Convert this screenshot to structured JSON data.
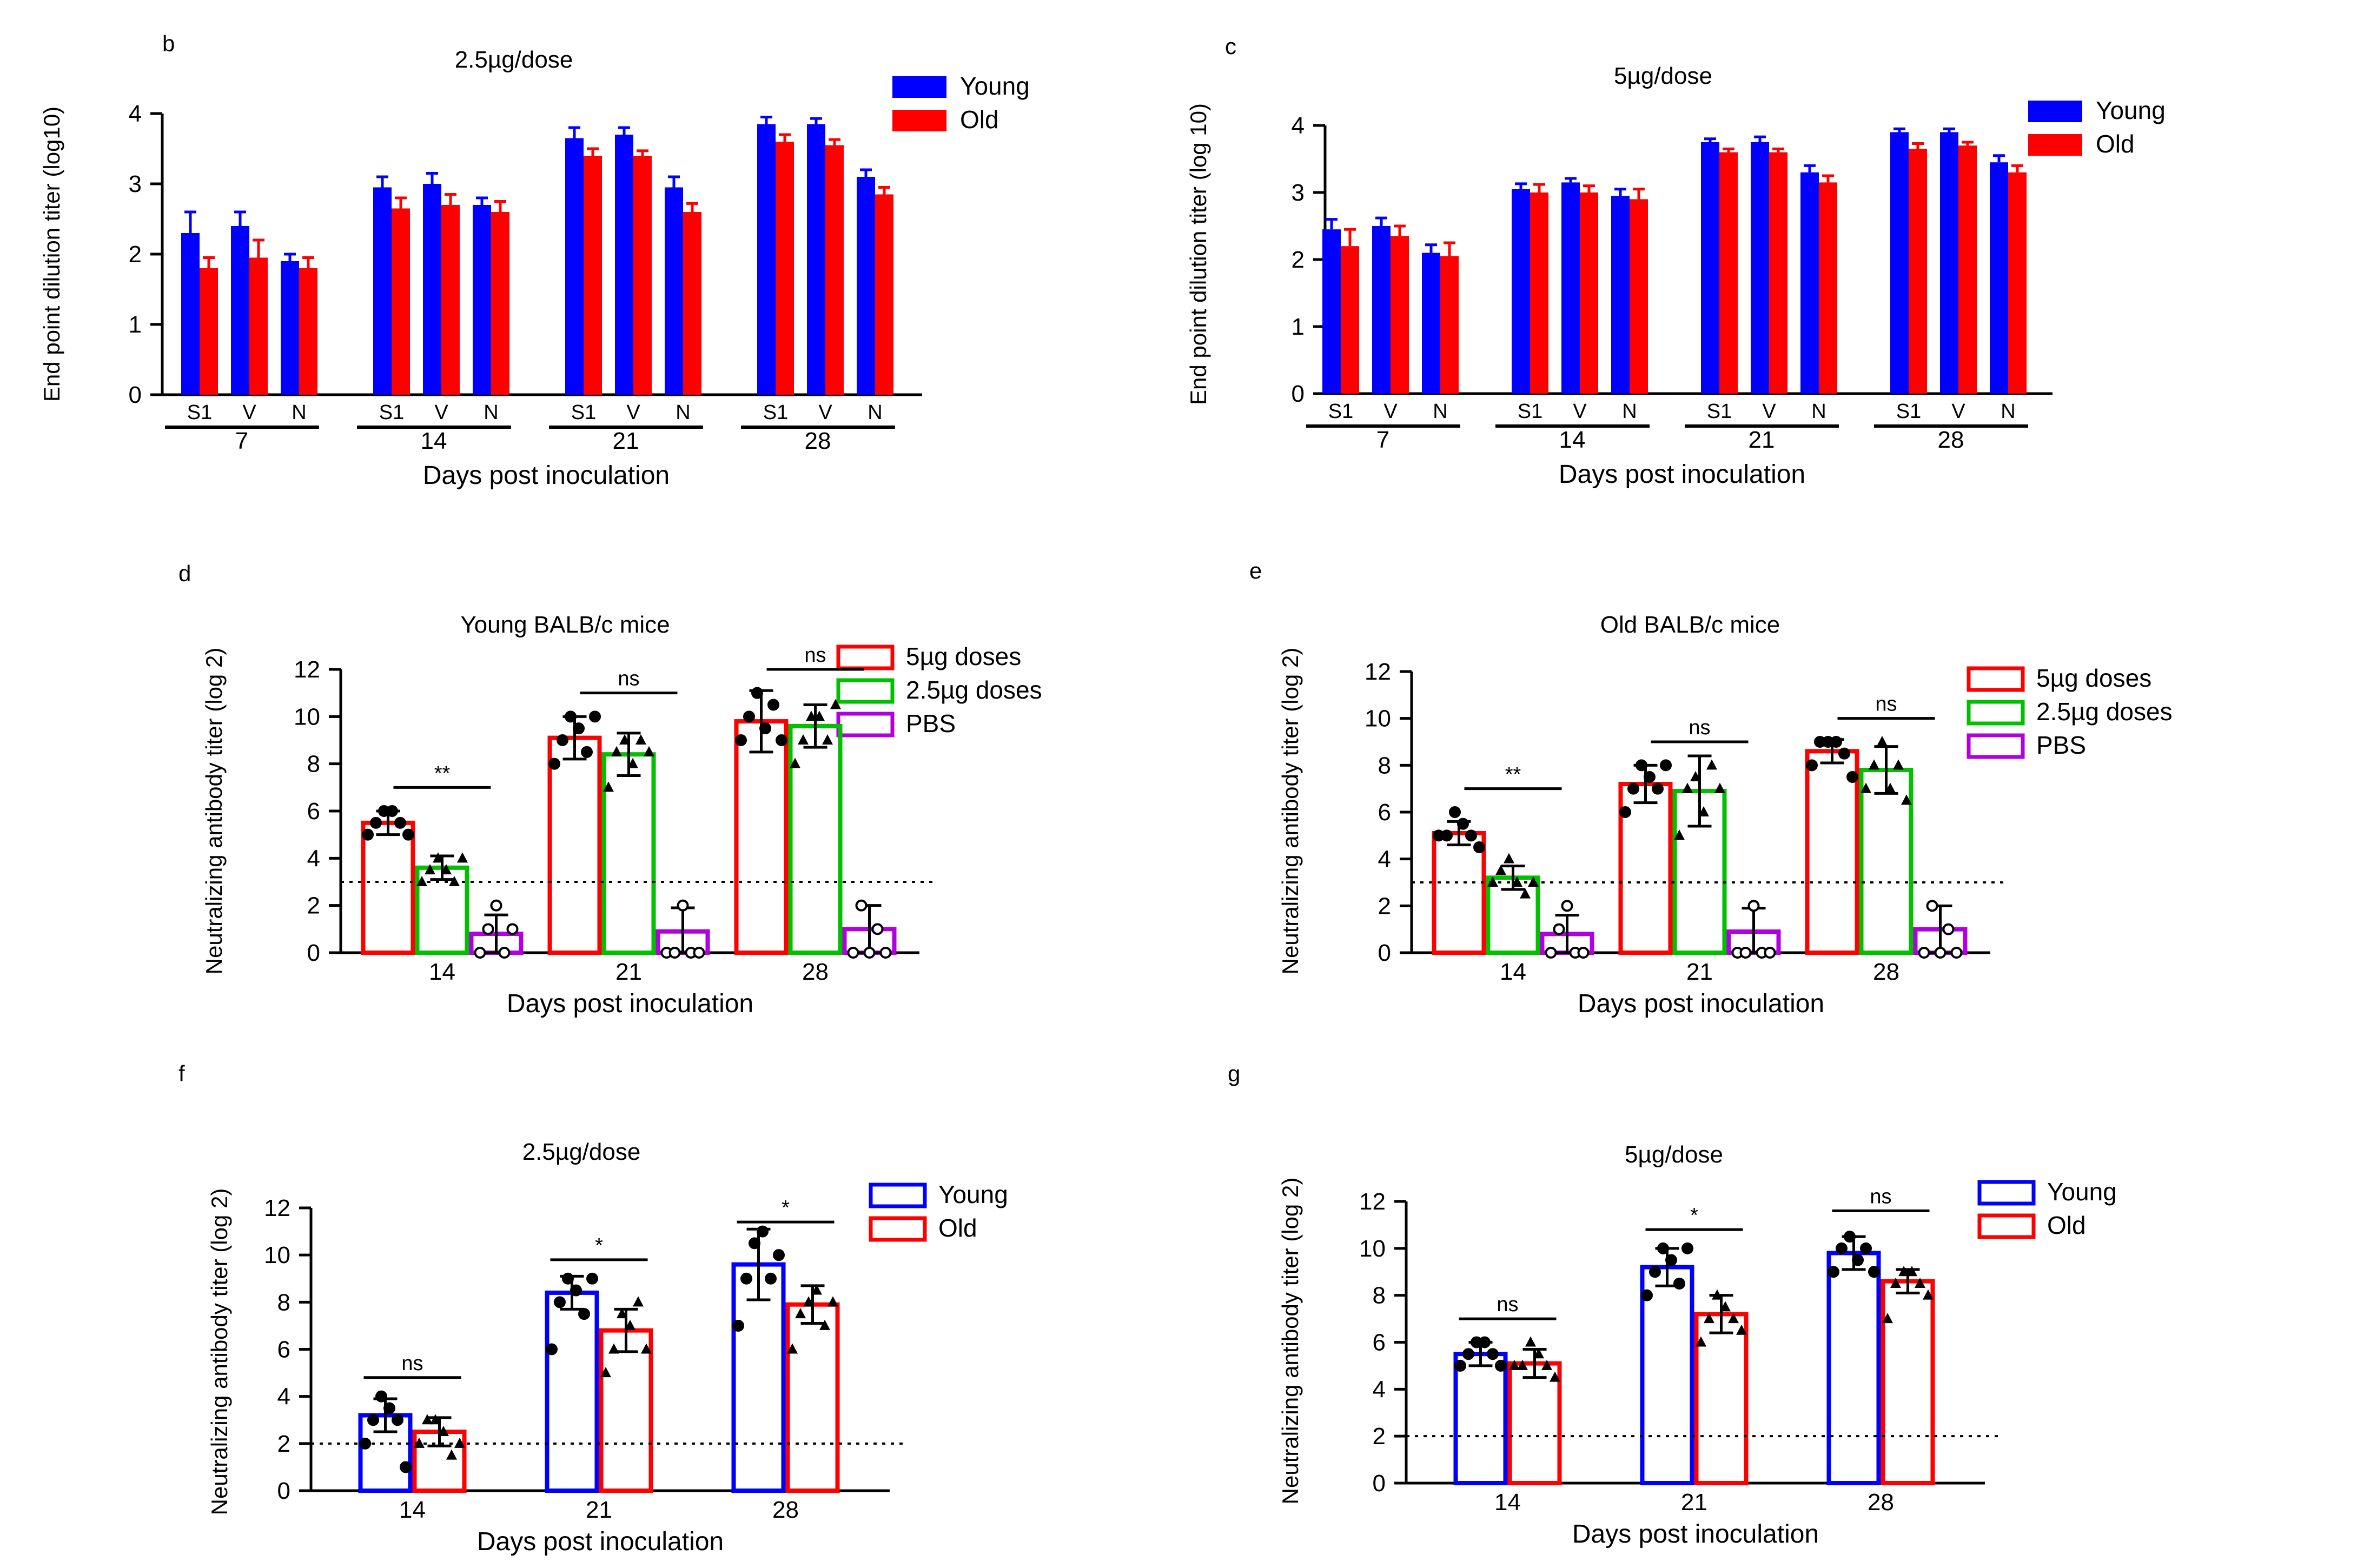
{
  "figure": {
    "colors": {
      "young": "#0000ff",
      "old": "#ff0000",
      "dose5": "#ff0000",
      "dose25": "#00c000",
      "pbs": "#b000e0"
    }
  },
  "chart_data": [
    {
      "id": "b",
      "panel_label": "b",
      "type": "bar",
      "title": "2.5µg/dose",
      "xlabel": "Days post inoculation",
      "ylabel": "End point dilution titer (log10)",
      "ylim": [
        0,
        4
      ],
      "yticks": [
        "0",
        "1",
        "2",
        "3",
        "4"
      ],
      "legend": [
        "Young",
        "Old"
      ],
      "group_labels": [
        "7",
        "14",
        "21",
        "28"
      ],
      "sub_labels": [
        "S1",
        "V",
        "N"
      ],
      "series": [
        {
          "name": "Young",
          "values": [
            2.3,
            2.4,
            1.9,
            2.95,
            3.0,
            2.7,
            3.65,
            3.7,
            2.95,
            3.85,
            3.85,
            3.1
          ],
          "errors": [
            0.3,
            0.2,
            0.1,
            0.15,
            0.15,
            0.1,
            0.15,
            0.1,
            0.15,
            0.1,
            0.08,
            0.1
          ]
        },
        {
          "name": "Old",
          "values": [
            1.8,
            1.95,
            1.8,
            2.65,
            2.7,
            2.6,
            3.4,
            3.4,
            2.6,
            3.6,
            3.55,
            2.85
          ],
          "errors": [
            0.15,
            0.25,
            0.15,
            0.15,
            0.15,
            0.15,
            0.1,
            0.07,
            0.12,
            0.1,
            0.08,
            0.1
          ]
        }
      ]
    },
    {
      "id": "c",
      "panel_label": "c",
      "type": "bar",
      "title": "5µg/dose",
      "xlabel": "Days post inoculation",
      "ylabel": "End point dilution titer (log 10)",
      "ylim": [
        0,
        4
      ],
      "yticks": [
        "0",
        "1",
        "2",
        "3",
        "4"
      ],
      "legend": [
        "Young",
        "Old"
      ],
      "group_labels": [
        "7",
        "14",
        "21",
        "28"
      ],
      "sub_labels": [
        "S1",
        "V",
        "N"
      ],
      "series": [
        {
          "name": "Young",
          "values": [
            2.45,
            2.5,
            2.1,
            3.05,
            3.15,
            2.95,
            3.75,
            3.75,
            3.3,
            3.9,
            3.9,
            3.45
          ],
          "errors": [
            0.15,
            0.12,
            0.12,
            0.08,
            0.06,
            0.1,
            0.05,
            0.08,
            0.1,
            0.05,
            0.05,
            0.1
          ]
        },
        {
          "name": "Old",
          "values": [
            2.2,
            2.35,
            2.05,
            3.0,
            3.0,
            2.9,
            3.6,
            3.6,
            3.15,
            3.65,
            3.7,
            3.3
          ],
          "errors": [
            0.25,
            0.15,
            0.2,
            0.12,
            0.1,
            0.15,
            0.05,
            0.05,
            0.1,
            0.08,
            0.05,
            0.1
          ]
        }
      ]
    },
    {
      "id": "d",
      "panel_label": "d",
      "type": "bar",
      "title": "Young BALB/c mice",
      "xlabel": "Days post inoculation",
      "ylabel": "Neutralizing antibody titer (log 2)",
      "ylim": [
        0,
        12
      ],
      "yticks": [
        "0",
        "2",
        "4",
        "6",
        "8",
        "10",
        "12"
      ],
      "categories": [
        "14",
        "21",
        "28"
      ],
      "threshold": 3,
      "legend": [
        "5µg doses",
        "2.5µg doses",
        "PBS"
      ],
      "annotations": [
        {
          "text": "**",
          "category": 0,
          "y": 7
        },
        {
          "text": "ns",
          "category": 1,
          "y": 11
        },
        {
          "text": "ns",
          "category": 2,
          "y": 12
        }
      ],
      "series": [
        {
          "name": "5µg doses",
          "values": [
            5.5,
            9.1,
            9.8
          ],
          "errors": [
            0.5,
            0.9,
            1.3
          ],
          "points": [
            [
              5,
              5.5,
              6,
              6,
              5.5,
              5
            ],
            [
              8,
              9,
              10,
              9.5,
              8.5,
              10
            ],
            [
              9,
              10,
              11,
              9.5,
              10.5,
              9
            ]
          ]
        },
        {
          "name": "2.5µg doses",
          "values": [
            3.6,
            8.4,
            9.6
          ],
          "errors": [
            0.5,
            0.9,
            0.9
          ],
          "points": [
            [
              3,
              3.5,
              4,
              3.5,
              3,
              4
            ],
            [
              7,
              8.5,
              9,
              8,
              9,
              8.5
            ],
            [
              8,
              9,
              10,
              10,
              9,
              10.5
            ]
          ]
        },
        {
          "name": "PBS",
          "values": [
            0.8,
            0.9,
            1.0
          ],
          "errors": [
            0.8,
            1.0,
            1.0
          ],
          "points": [
            [
              0,
              1,
              2,
              0,
              1
            ],
            [
              0,
              0,
              2,
              0,
              0
            ],
            [
              0,
              2,
              0,
              1,
              0
            ]
          ]
        }
      ]
    },
    {
      "id": "e",
      "panel_label": "e",
      "type": "bar",
      "title": "Old BALB/c mice",
      "xlabel": "Days post inoculation",
      "ylabel": "Neutralizing antibody titer (log 2)",
      "ylim": [
        0,
        12
      ],
      "yticks": [
        "0",
        "2",
        "4",
        "6",
        "8",
        "10",
        "12"
      ],
      "categories": [
        "14",
        "21",
        "28"
      ],
      "threshold": 3,
      "legend": [
        "5µg doses",
        "2.5µg doses",
        "PBS"
      ],
      "annotations": [
        {
          "text": "**",
          "category": 0,
          "y": 7
        },
        {
          "text": "ns",
          "category": 1,
          "y": 9
        },
        {
          "text": "ns",
          "category": 2,
          "y": 10
        }
      ],
      "series": [
        {
          "name": "5µg doses",
          "values": [
            5.1,
            7.2,
            8.6
          ],
          "errors": [
            0.5,
            0.8,
            0.5
          ],
          "points": [
            [
              5,
              5,
              6,
              5.5,
              5,
              4.5
            ],
            [
              6,
              7,
              8,
              7.5,
              7,
              8
            ],
            [
              8,
              9,
              9,
              9,
              8.5,
              7.5
            ]
          ]
        },
        {
          "name": "2.5µg doses",
          "values": [
            3.2,
            6.9,
            7.8
          ],
          "errors": [
            0.5,
            1.5,
            1.0
          ],
          "points": [
            [
              3,
              3.5,
              4,
              3,
              2.5,
              3
            ],
            [
              5,
              7,
              7.5,
              6,
              8,
              7
            ],
            [
              7,
              8,
              9,
              7,
              8,
              6.5
            ]
          ]
        },
        {
          "name": "PBS",
          "values": [
            0.8,
            0.9,
            1.0
          ],
          "errors": [
            0.8,
            1.0,
            1.0
          ],
          "points": [
            [
              0,
              1,
              2,
              0,
              0
            ],
            [
              0,
              0,
              2,
              0,
              0
            ],
            [
              0,
              2,
              0,
              1,
              0
            ]
          ]
        }
      ]
    },
    {
      "id": "f",
      "panel_label": "f",
      "type": "bar",
      "title": "2.5µg/dose",
      "xlabel": "Days post inoculation",
      "ylabel": "Neutralizing antibody titer (log 2)",
      "ylim": [
        0,
        12
      ],
      "yticks": [
        "0",
        "2",
        "4",
        "6",
        "8",
        "10",
        "12"
      ],
      "categories": [
        "14",
        "21",
        "28"
      ],
      "threshold": 2,
      "legend": [
        "Young",
        "Old"
      ],
      "annotations": [
        {
          "text": "ns",
          "category": 0,
          "y": 4.8
        },
        {
          "text": "*",
          "category": 1,
          "y": 9.8
        },
        {
          "text": "*",
          "category": 2,
          "y": 11.4
        }
      ],
      "series": [
        {
          "name": "Young",
          "values": [
            3.2,
            8.4,
            9.6
          ],
          "errors": [
            0.7,
            0.7,
            1.5
          ],
          "points": [
            [
              2,
              3,
              4,
              3.5,
              3,
              1
            ],
            [
              6,
              8,
              9,
              8.5,
              7.5,
              9
            ],
            [
              7,
              9,
              10.5,
              11,
              9,
              10
            ]
          ]
        },
        {
          "name": "Old",
          "values": [
            2.5,
            6.8,
            7.9
          ],
          "errors": [
            0.6,
            0.9,
            0.8
          ],
          "points": [
            [
              2,
              3,
              3,
              2.5,
              1.5,
              2
            ],
            [
              5,
              6,
              7.5,
              7,
              8,
              6
            ],
            [
              6,
              7.5,
              8,
              8.5,
              7,
              8
            ]
          ]
        }
      ]
    },
    {
      "id": "g",
      "panel_label": "g",
      "type": "bar",
      "title": "5µg/dose",
      "xlabel": "Days post inoculation",
      "ylabel": "Neutralizing antibody titer (log 2)",
      "ylim": [
        0,
        12
      ],
      "yticks": [
        "0",
        "2",
        "4",
        "6",
        "8",
        "10",
        "12"
      ],
      "categories": [
        "14",
        "21",
        "28"
      ],
      "threshold": 2,
      "legend": [
        "Young",
        "Old"
      ],
      "annotations": [
        {
          "text": "ns",
          "category": 0,
          "y": 7
        },
        {
          "text": "*",
          "category": 1,
          "y": 10.8
        },
        {
          "text": "ns",
          "category": 2,
          "y": 11.6
        }
      ],
      "series": [
        {
          "name": "Young",
          "values": [
            5.5,
            9.2,
            9.8
          ],
          "errors": [
            0.5,
            0.8,
            0.7
          ],
          "points": [
            [
              5,
              5.5,
              6,
              6,
              5.5,
              5
            ],
            [
              8,
              9,
              10,
              9.5,
              8.5,
              10
            ],
            [
              9,
              10,
              10.5,
              9.5,
              10,
              9
            ]
          ]
        },
        {
          "name": "Old",
          "values": [
            5.1,
            7.2,
            8.6
          ],
          "errors": [
            0.6,
            0.8,
            0.5
          ],
          "points": [
            [
              5,
              5,
              6,
              5.5,
              5,
              4.5
            ],
            [
              6,
              7,
              8,
              7.5,
              7,
              6.5
            ],
            [
              7,
              8.5,
              9,
              9,
              8.5,
              8
            ]
          ]
        }
      ]
    }
  ]
}
